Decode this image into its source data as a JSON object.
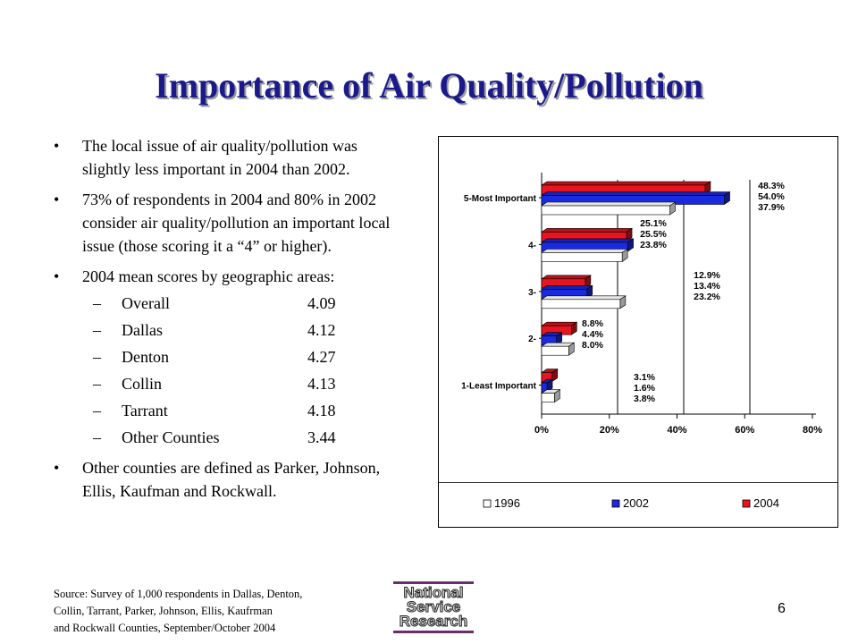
{
  "slide": {
    "title": "Importance of Air Quality/Pollution",
    "page_number": "6",
    "bullets": [
      "The local issue of air quality/pollution was slightly less important in 2004 than 2002.",
      "73% of respondents in 2004 and 80% in 2002 consider air quality/pollution an important local issue (those scoring it a “4” or higher).",
      "2004 mean scores by geographic areas:",
      "Other counties are defined as Parker, Johnson, Ellis, Kaufman and Rockwall."
    ],
    "means": [
      {
        "name": "Overall",
        "score": "4.09"
      },
      {
        "name": "Dallas",
        "score": "4.12"
      },
      {
        "name": "Denton",
        "score": "4.27"
      },
      {
        "name": "Collin",
        "score": "4.13"
      },
      {
        "name": "Tarrant",
        "score": "4.18"
      },
      {
        "name": "Other Counties",
        "score": "3.44"
      }
    ],
    "source_lines": [
      "Source: Survey of 1,000 respondents in Dallas, Denton,",
      "Collin, Tarrant, Parker, Johnson, Ellis, Kaufrman",
      "and Rockwall Counties, September/October 2004"
    ],
    "logo": {
      "line1": "National",
      "line2": "Service",
      "line3": "Research"
    }
  },
  "chart_data": {
    "type": "bar",
    "orientation": "horizontal",
    "categories": [
      "5-Most Important",
      "4-",
      "3-",
      "2-",
      "1-Least Important"
    ],
    "series": [
      {
        "name": "2004",
        "color": "#e8141e",
        "values": [
          48.3,
          25.1,
          12.9,
          8.8,
          3.1
        ]
      },
      {
        "name": "2002",
        "color": "#1a2ae0",
        "values": [
          54.0,
          25.5,
          13.4,
          4.4,
          1.6
        ]
      },
      {
        "name": "1996",
        "color": "#ffffff",
        "values": [
          37.9,
          23.8,
          23.2,
          8.0,
          3.8
        ]
      }
    ],
    "data_labels": [
      [
        "48.3%",
        "54.0%",
        "37.9%"
      ],
      [
        "25.1%",
        "25.5%",
        "23.8%"
      ],
      [
        "12.9%",
        "13.4%",
        "23.2%"
      ],
      [
        "8.8%",
        "4.4%",
        "8.0%"
      ],
      [
        "3.1%",
        "1.6%",
        "3.8%"
      ]
    ],
    "xlim": [
      0,
      80
    ],
    "ticks": [
      "0%",
      "20%",
      "40%",
      "60%",
      "80%"
    ],
    "legend": [
      "1996",
      "2002",
      "2004"
    ],
    "legend_position": "bottom",
    "grid": false
  }
}
